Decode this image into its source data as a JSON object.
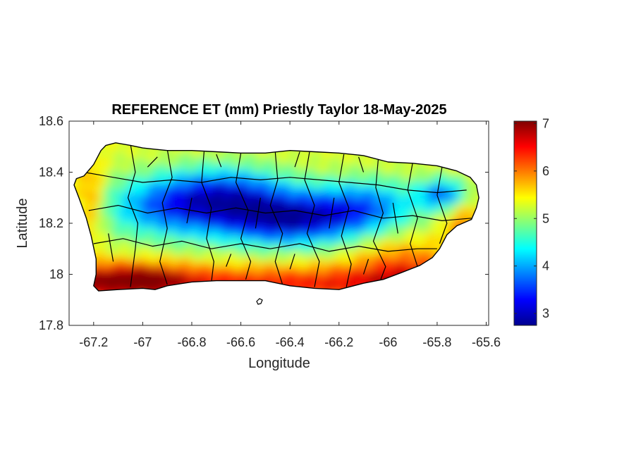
{
  "title": "REFERENCE ET (mm) Priestly Taylor 18-May-2025",
  "x_axis": {
    "label": "Longitude",
    "range": [
      -67.3,
      -65.59
    ],
    "ticks": [
      -67.2,
      -67,
      -66.8,
      -66.6,
      -66.4,
      -66.2,
      -66,
      -65.8,
      -65.6
    ],
    "tick_labels": [
      "-67.2",
      "-67",
      "-66.8",
      "-66.6",
      "-66.4",
      "-66.2",
      "-66",
      "-65.8",
      "-65.6"
    ]
  },
  "y_axis": {
    "label": "Latitude",
    "range": [
      17.8,
      18.6
    ],
    "ticks": [
      17.8,
      18,
      18.2,
      18.4,
      18.6
    ],
    "tick_labels": [
      "17.8",
      "18",
      "18.2",
      "18.4",
      "18.6"
    ]
  },
  "colorbar": {
    "colormap": "jet",
    "range": [
      2.75,
      7.05
    ],
    "ticks": [
      3,
      4,
      5,
      6,
      7
    ],
    "tick_labels": [
      "3",
      "4",
      "5",
      "6",
      "7"
    ],
    "colors": [
      "#00008f",
      "#0000ff",
      "#007fff",
      "#00ffff",
      "#7fff7f",
      "#ffff00",
      "#ff7f00",
      "#ff0000",
      "#800000"
    ]
  },
  "map": {
    "region": "Puerto Rico",
    "variable": "Reference ET (mm)",
    "method": "Priestly Taylor",
    "date": "18-May-2025",
    "boundaries": "municipality outlines",
    "value_regions": [
      {
        "area": "central interior / Cordillera",
        "approx_value": 3.2
      },
      {
        "area": "west interior",
        "approx_value": 3.8
      },
      {
        "area": "El Yunque (northeast)",
        "approx_value": 3.5
      },
      {
        "area": "north coast",
        "approx_value": 5.2
      },
      {
        "area": "east coast",
        "approx_value": 6.0
      },
      {
        "area": "southeast coast",
        "approx_value": 6.3
      },
      {
        "area": "southwest coast",
        "approx_value": 6.9
      }
    ]
  }
}
